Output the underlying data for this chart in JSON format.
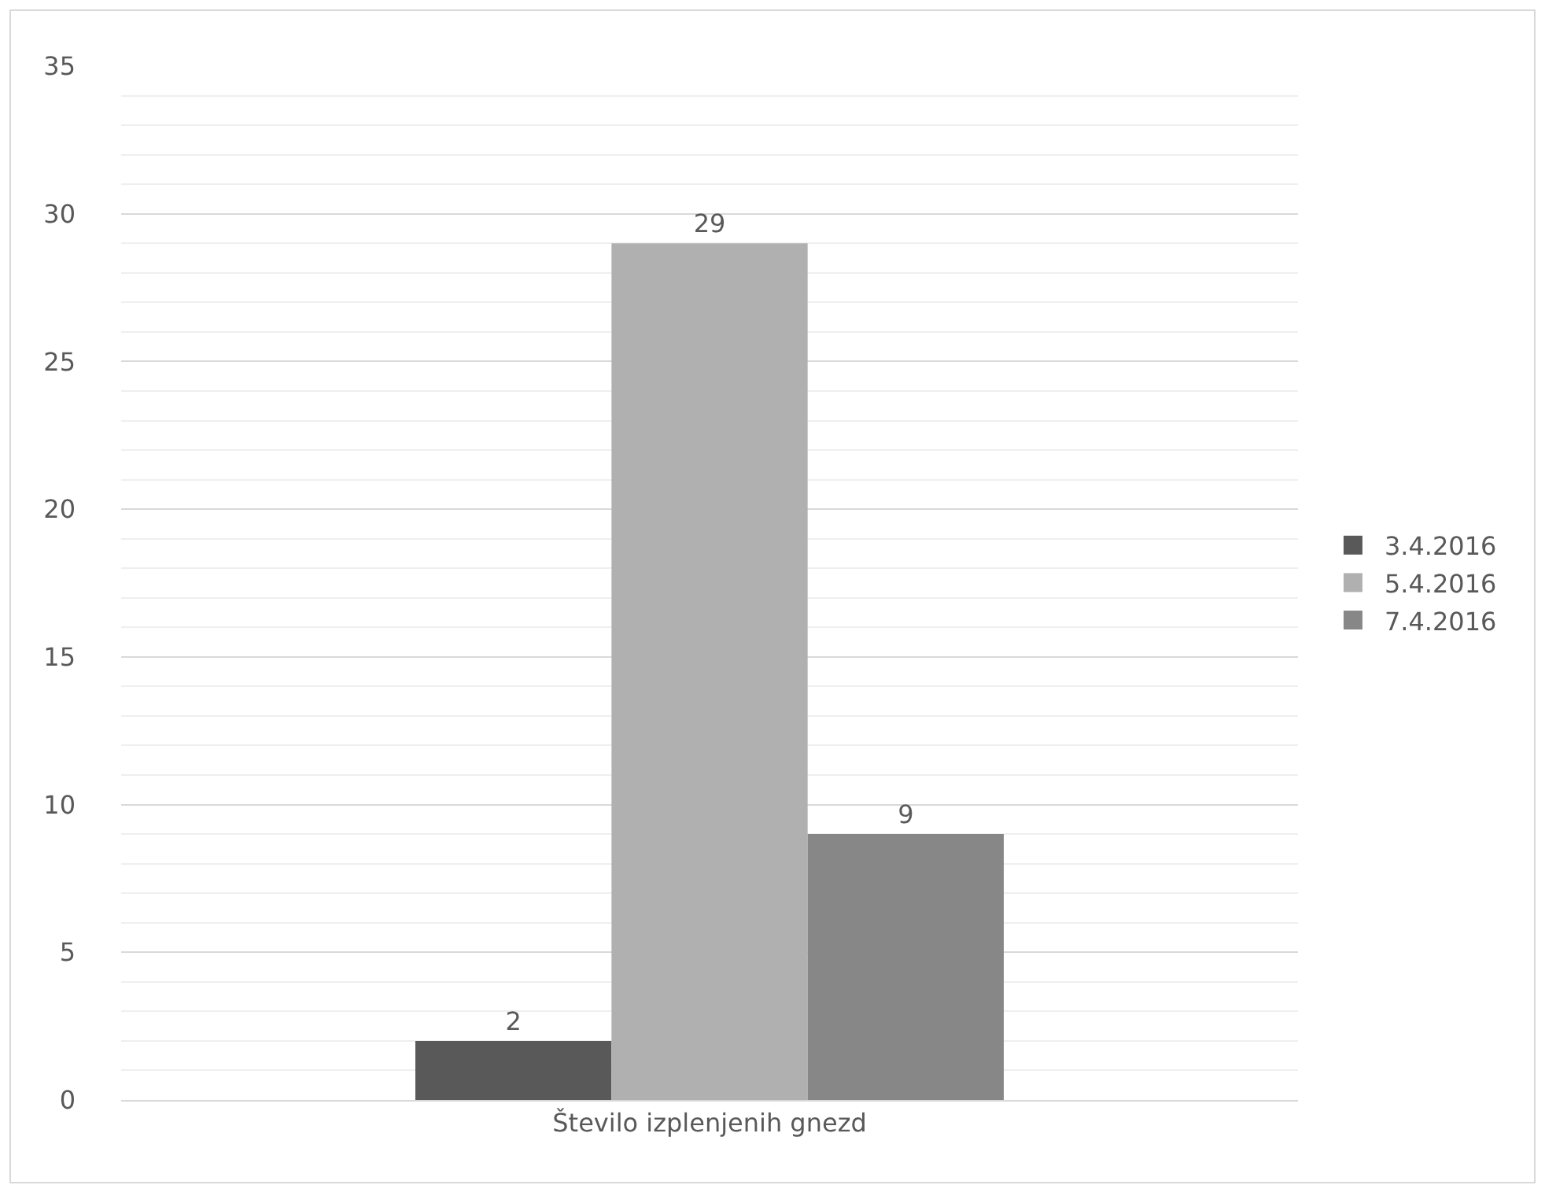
{
  "chart_data": {
    "type": "bar",
    "categories": [
      "Število izplenjenih gnezd"
    ],
    "series": [
      {
        "name": "3.4.2016",
        "color": "#595959",
        "values": [
          2
        ]
      },
      {
        "name": "5.4.2016",
        "color": "#b0b0b0",
        "values": [
          29
        ]
      },
      {
        "name": "7.4.2016",
        "color": "#878787",
        "values": [
          9
        ]
      }
    ],
    "ylim": [
      0,
      35
    ],
    "yticks": [
      0,
      5,
      10,
      15,
      20,
      25,
      30,
      35
    ],
    "grid": "y",
    "legend": "right",
    "data_labels": true
  }
}
